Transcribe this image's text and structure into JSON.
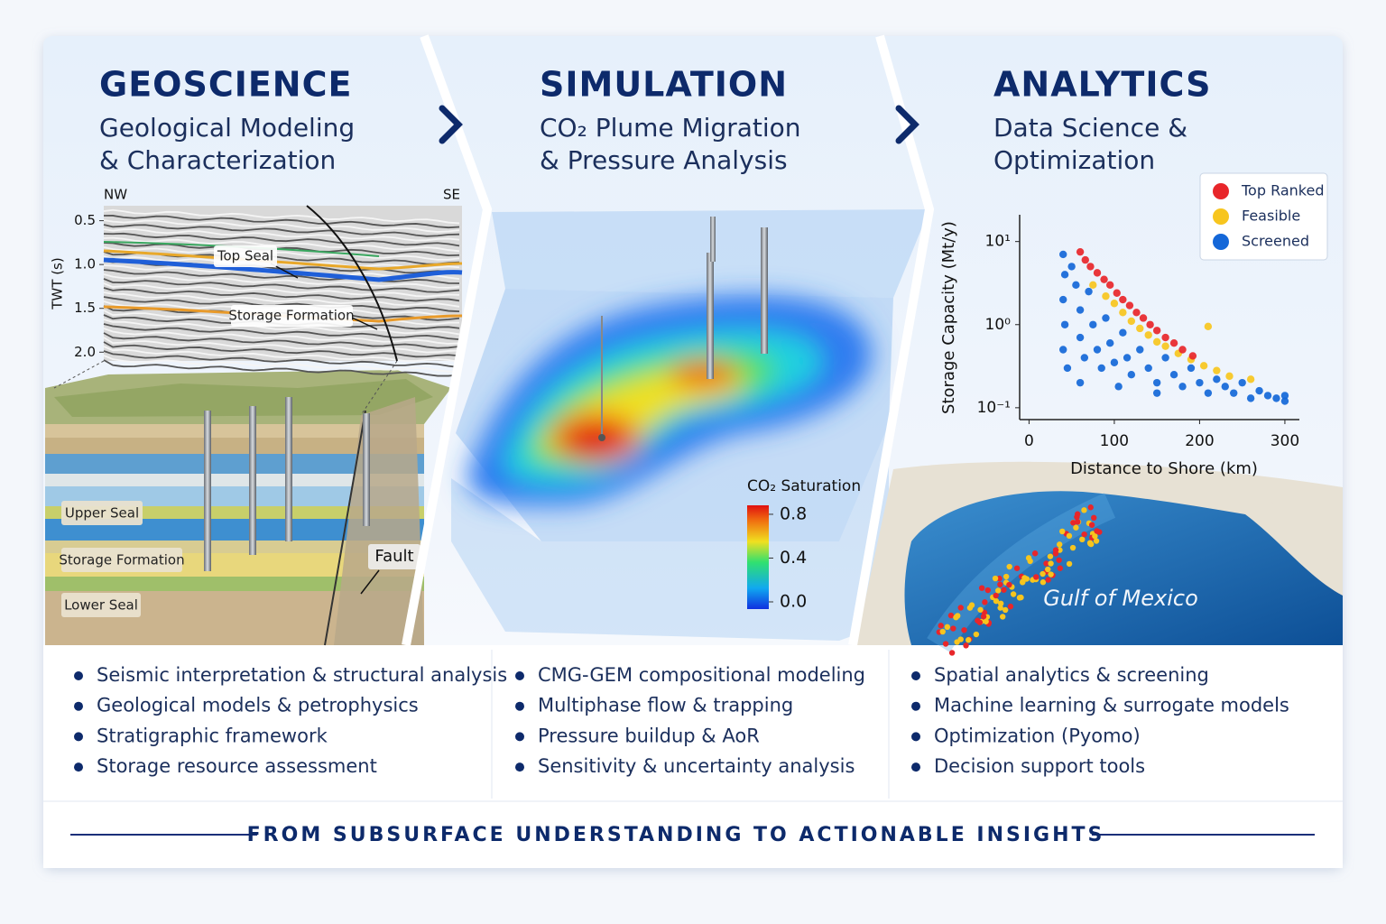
{
  "panels": [
    {
      "title": "GEOSCIENCE",
      "subtitle": [
        "Geological Modeling",
        "& Characterization"
      ],
      "bullets": [
        "Seismic interpretation & structural analysis",
        "Geological models & petrophysics",
        "Stratigraphic framework",
        "Storage resource assessment"
      ]
    },
    {
      "title": "SIMULATION",
      "subtitle": [
        "CO₂ Plume Migration",
        "& Pressure Analysis"
      ],
      "bullets": [
        "CMG-GEM compositional modeling",
        "Multiphase flow & trapping",
        "Pressure buildup & AoR",
        "Sensitivity & uncertainty analysis"
      ]
    },
    {
      "title": "ANALYTICS",
      "subtitle": [
        "Data Science &",
        "Optimization"
      ],
      "bullets": [
        "Spatial analytics & screening",
        "Machine learning & surrogate models",
        "Optimization (Pyomo)",
        "Decision support tools"
      ]
    }
  ],
  "seismic": {
    "left": "NW",
    "right": "SE",
    "axis_label": "TWT (s)",
    "ylim": [
      0.35,
      2.1
    ],
    "yticks": [
      0.5,
      {
        "value": 1,
        "label": "1.0"
      },
      1.5,
      {
        "value": 2,
        "label": "2.0"
      }
    ],
    "annotations": [
      "Top Seal",
      "Storage Formation"
    ]
  },
  "block_labels": [
    "Upper Seal",
    "Storage Formation",
    "Lower Seal",
    "Fault"
  ],
  "colorbar": {
    "title": "CO₂ Saturation",
    "lim": [
      -0.066,
      0.882
    ],
    "ticks": [
      0.8,
      0.4,
      {
        "value": 0,
        "label": "0.0"
      }
    ]
  },
  "chart": {
    "type": "scatter",
    "x_label": "Distance to Shore (km)",
    "y_label": "Storage Capacity (Mt/y)",
    "xlim": [
      -11,
      317
    ],
    "xticks": [
      0,
      100,
      200,
      300
    ],
    "ylim": [
      0.072,
      21
    ],
    "log_y": true,
    "yticks": [
      {
        "value": 10,
        "label": "10¹"
      },
      {
        "value": 1,
        "label": "10⁰"
      },
      {
        "value": 0.1,
        "label": "10⁻¹"
      }
    ],
    "legend": "upper right",
    "series": [
      {
        "name": "Top Ranked",
        "color": "#e8262a",
        "x": [
          60,
          66,
          72,
          80,
          88,
          95,
          103,
          110,
          118,
          126,
          134,
          142,
          150,
          160,
          170,
          180,
          192
        ],
        "values": [
          7.5,
          6,
          5,
          4.2,
          3.5,
          3,
          2.4,
          2,
          1.7,
          1.4,
          1.2,
          1.0,
          0.85,
          0.7,
          0.6,
          0.5,
          0.42
        ]
      },
      {
        "name": "Feasible",
        "color": "#f7c51e",
        "x": [
          75,
          90,
          100,
          110,
          120,
          130,
          140,
          150,
          160,
          175,
          190,
          205,
          220,
          235,
          210,
          260
        ],
        "values": [
          3,
          2.2,
          1.8,
          1.4,
          1.1,
          0.9,
          0.75,
          0.62,
          0.55,
          0.45,
          0.38,
          0.32,
          0.28,
          0.24,
          0.95,
          0.22
        ]
      },
      {
        "name": "Screened",
        "color": "#1467d8",
        "x": [
          40,
          42,
          40,
          42,
          40,
          45,
          50,
          55,
          60,
          60,
          65,
          70,
          75,
          80,
          85,
          90,
          95,
          100,
          110,
          115,
          120,
          130,
          140,
          150,
          160,
          170,
          180,
          190,
          200,
          210,
          220,
          230,
          240,
          250,
          260,
          270,
          280,
          290,
          300,
          300,
          60,
          105,
          150
        ],
        "values": [
          7,
          4,
          2,
          1,
          0.5,
          0.3,
          5,
          3,
          1.5,
          0.7,
          0.4,
          2.5,
          1,
          0.5,
          0.3,
          1.2,
          0.6,
          0.35,
          0.8,
          0.4,
          0.25,
          0.5,
          0.3,
          0.2,
          0.4,
          0.25,
          0.18,
          0.3,
          0.2,
          0.15,
          0.22,
          0.18,
          0.15,
          0.2,
          0.13,
          0.16,
          0.14,
          0.13,
          0.12,
          0.14,
          0.2,
          0.18,
          0.15
        ]
      }
    ]
  },
  "map_label": "Gulf of Mexico",
  "footer": "FROM SUBSURFACE UNDERSTANDING TO ACTIONABLE INSIGHTS"
}
